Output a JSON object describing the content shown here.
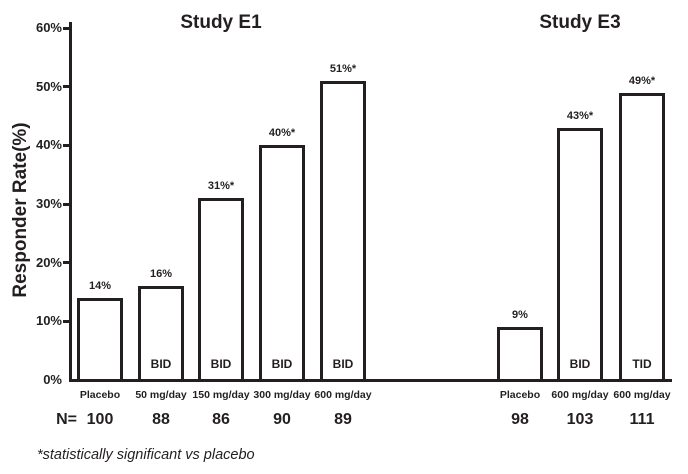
{
  "chart_data": {
    "type": "bar",
    "ylabel": "Responder Rate(%)",
    "ylim": [
      0,
      60
    ],
    "yticks": [
      0,
      10,
      20,
      30,
      40,
      50,
      60
    ],
    "ytick_labels": [
      "0%",
      "10%",
      "20%",
      "30%",
      "40%",
      "50%",
      "60%"
    ],
    "grid": false,
    "legend": false,
    "n_row_label": "N=",
    "footnote": "*statistically significant vs placebo",
    "groups": [
      {
        "title": "Study E1",
        "bars": [
          {
            "category": "Placebo",
            "value": 14,
            "value_label": "14%",
            "inner_label": "",
            "n": "100"
          },
          {
            "category": "50 mg/day",
            "value": 16,
            "value_label": "16%",
            "inner_label": "BID",
            "n": "88"
          },
          {
            "category": "150 mg/day",
            "value": 31,
            "value_label": "31%*",
            "inner_label": "BID",
            "n": "86"
          },
          {
            "category": "300 mg/day",
            "value": 40,
            "value_label": "40%*",
            "inner_label": "BID",
            "n": "90"
          },
          {
            "category": "600 mg/day",
            "value": 51,
            "value_label": "51%*",
            "inner_label": "BID",
            "n": "89"
          }
        ]
      },
      {
        "title": "Study E3",
        "bars": [
          {
            "category": "Placebo",
            "value": 9,
            "value_label": "9%",
            "inner_label": "",
            "n": "98"
          },
          {
            "category": "600 mg/day",
            "value": 43,
            "value_label": "43%*",
            "inner_label": "BID",
            "n": "103"
          },
          {
            "category": "600 mg/day",
            "value": 49,
            "value_label": "49%*",
            "inner_label": "TID",
            "n": "111"
          }
        ]
      }
    ],
    "colors": {
      "ink": "#231f20",
      "bar_fill": "#ffffff",
      "background": "#ffffff"
    }
  }
}
